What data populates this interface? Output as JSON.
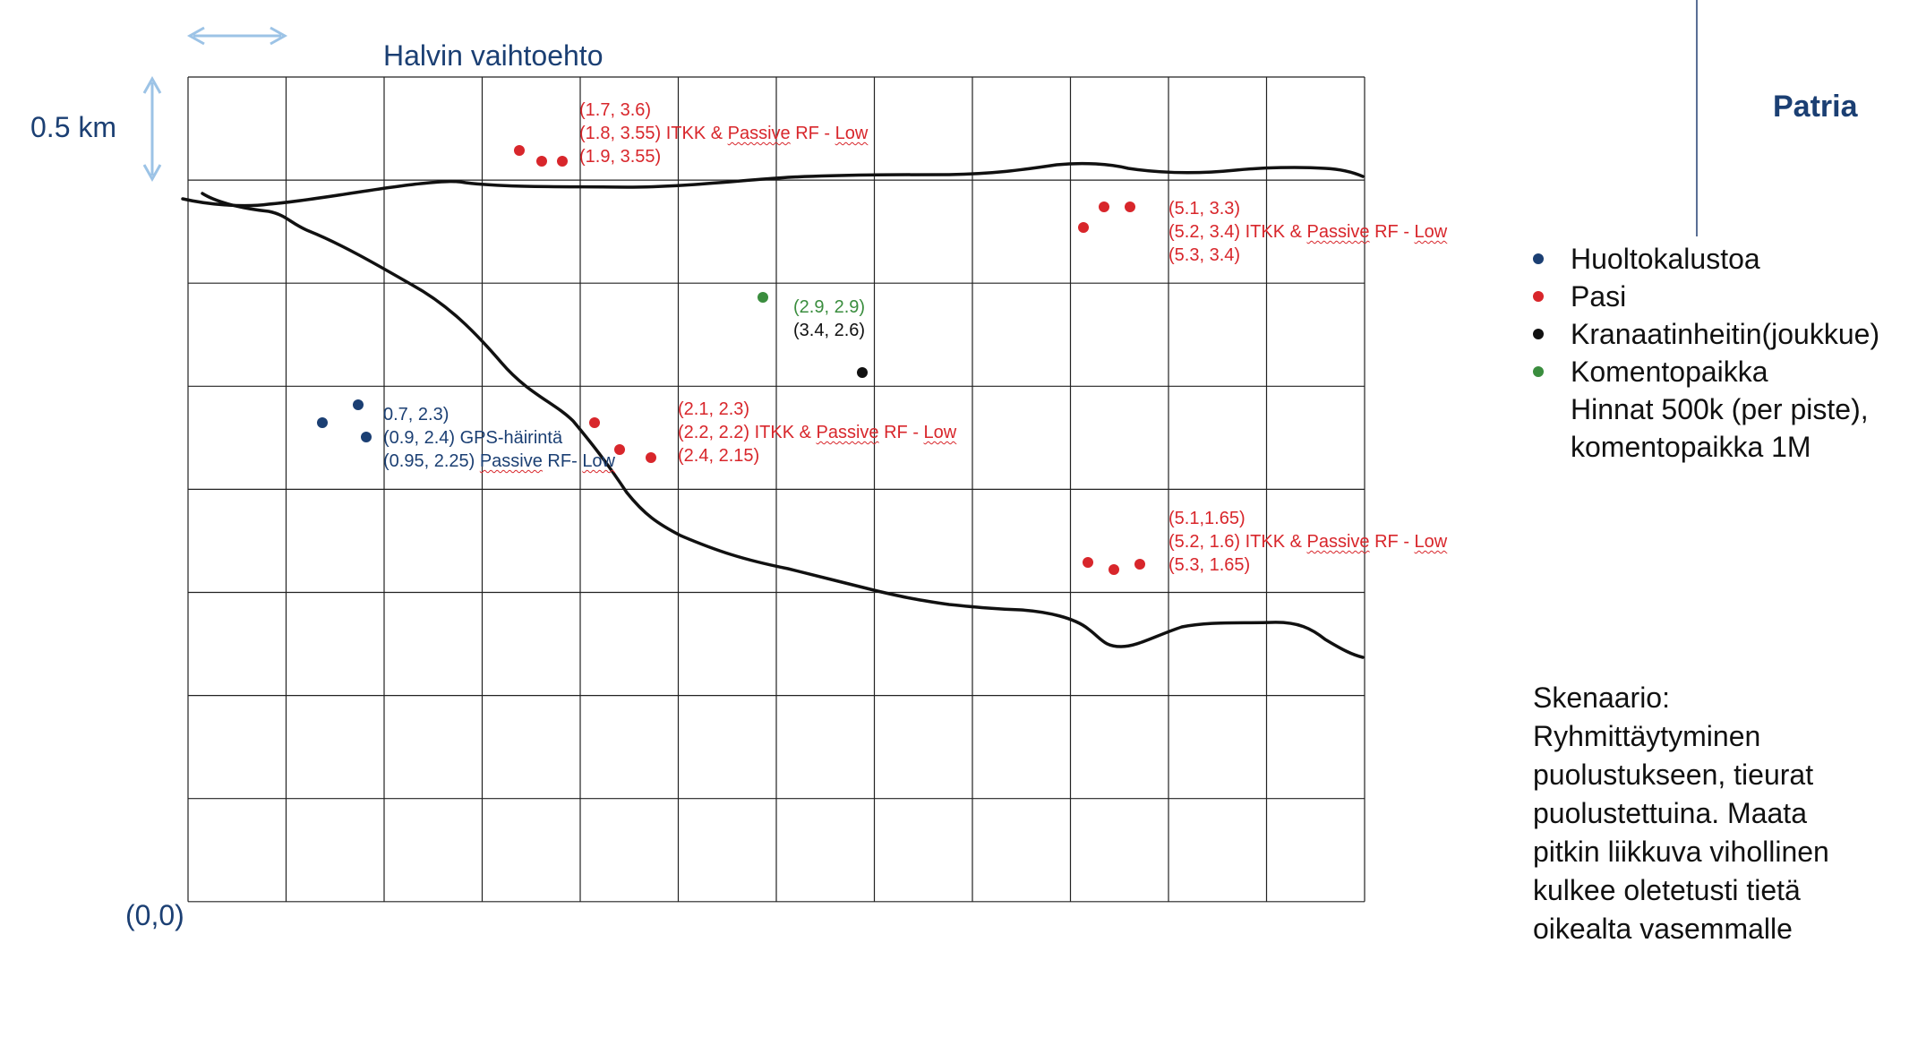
{
  "title": "Halvin vaihtoehto",
  "scale_label": "0.5 km",
  "origin_label": "(0,0)",
  "logo": "Patria",
  "colors": {
    "red": "#d8262b",
    "navy": "#1b3f73",
    "green": "#3a8d3e",
    "black": "#111111",
    "arrow": "#9cc3e6",
    "grid": "#222222"
  },
  "legend": {
    "items": [
      {
        "label": "Huoltokalustoa",
        "color": "#1b3f73"
      },
      {
        "label": "Pasi",
        "color": "#d8262b"
      },
      {
        "label": "Kranaatinheitin(joukkue)",
        "color": "#111111"
      },
      {
        "label": "Komentopaikka",
        "color": "#3a8d3e"
      }
    ],
    "note_lines": [
      "Hinnat 500k (per piste),",
      "komentopaikka 1M"
    ]
  },
  "scenario_lines": [
    "Skenaario:",
    "Ryhmittäytyminen",
    "puolustukseen, tieurat",
    "puolustettuina. Maata",
    "pitkin liikkuva vihollinen",
    "kulkee oletetusti tietä",
    "oikealta vasemmalle"
  ],
  "grid": {
    "cols": 12,
    "rows": 8
  },
  "groups": [
    {
      "color": "red",
      "points": [
        [
          1.7,
          3.6
        ],
        [
          1.8,
          3.55
        ],
        [
          1.9,
          3.55
        ]
      ],
      "lines": [
        "(1.7, 3.6)",
        "(1.8, 3.55) ITKK & ",
        "Passive",
        " RF - ",
        "Low",
        "(1.9, 3.55)"
      ]
    },
    {
      "color": "red",
      "points": [
        [
          5.1,
          3.3
        ],
        [
          5.2,
          3.4
        ],
        [
          5.3,
          3.4
        ]
      ],
      "lines": [
        "(5.1, 3.3)",
        "(5.2, 3.4) ITKK & ",
        "Passive",
        " RF - ",
        "Low",
        "(5.3, 3.4)"
      ]
    },
    {
      "color": "red",
      "points": [
        [
          2.1,
          2.3
        ],
        [
          2.2,
          2.2
        ],
        [
          2.4,
          2.15
        ]
      ],
      "lines": [
        "(2.1, 2.3)",
        "(2.2, 2.2) ITKK & ",
        "Passive",
        " RF - ",
        "Low",
        "(2.4, 2.15)"
      ]
    },
    {
      "color": "red",
      "points": [
        [
          5.1,
          1.65
        ],
        [
          5.2,
          1.6
        ],
        [
          5.3,
          1.65
        ]
      ],
      "lines": [
        "(5.1,1.65)",
        "(5.2, 1.6) ITKK & ",
        "Passive",
        " RF - ",
        "Low",
        "(5.3, 1.65)"
      ]
    },
    {
      "color": "navy",
      "points": [
        [
          0.7,
          2.3
        ],
        [
          0.9,
          2.4
        ],
        [
          0.95,
          2.25
        ]
      ],
      "lines": [
        "0.7, 2.3)",
        "(0.9, 2.4) GPS-häirintä",
        "(0.95, 2.25) ",
        "Passive",
        " RF- ",
        "Low"
      ]
    },
    {
      "color": "green",
      "points": [
        [
          2.9,
          2.9
        ]
      ],
      "lines": [
        "(2.9, 2.9)"
      ]
    },
    {
      "color": "black",
      "points": [
        [
          3.4,
          2.6
        ]
      ],
      "lines": [
        "(3.4, 2.6)"
      ]
    }
  ]
}
